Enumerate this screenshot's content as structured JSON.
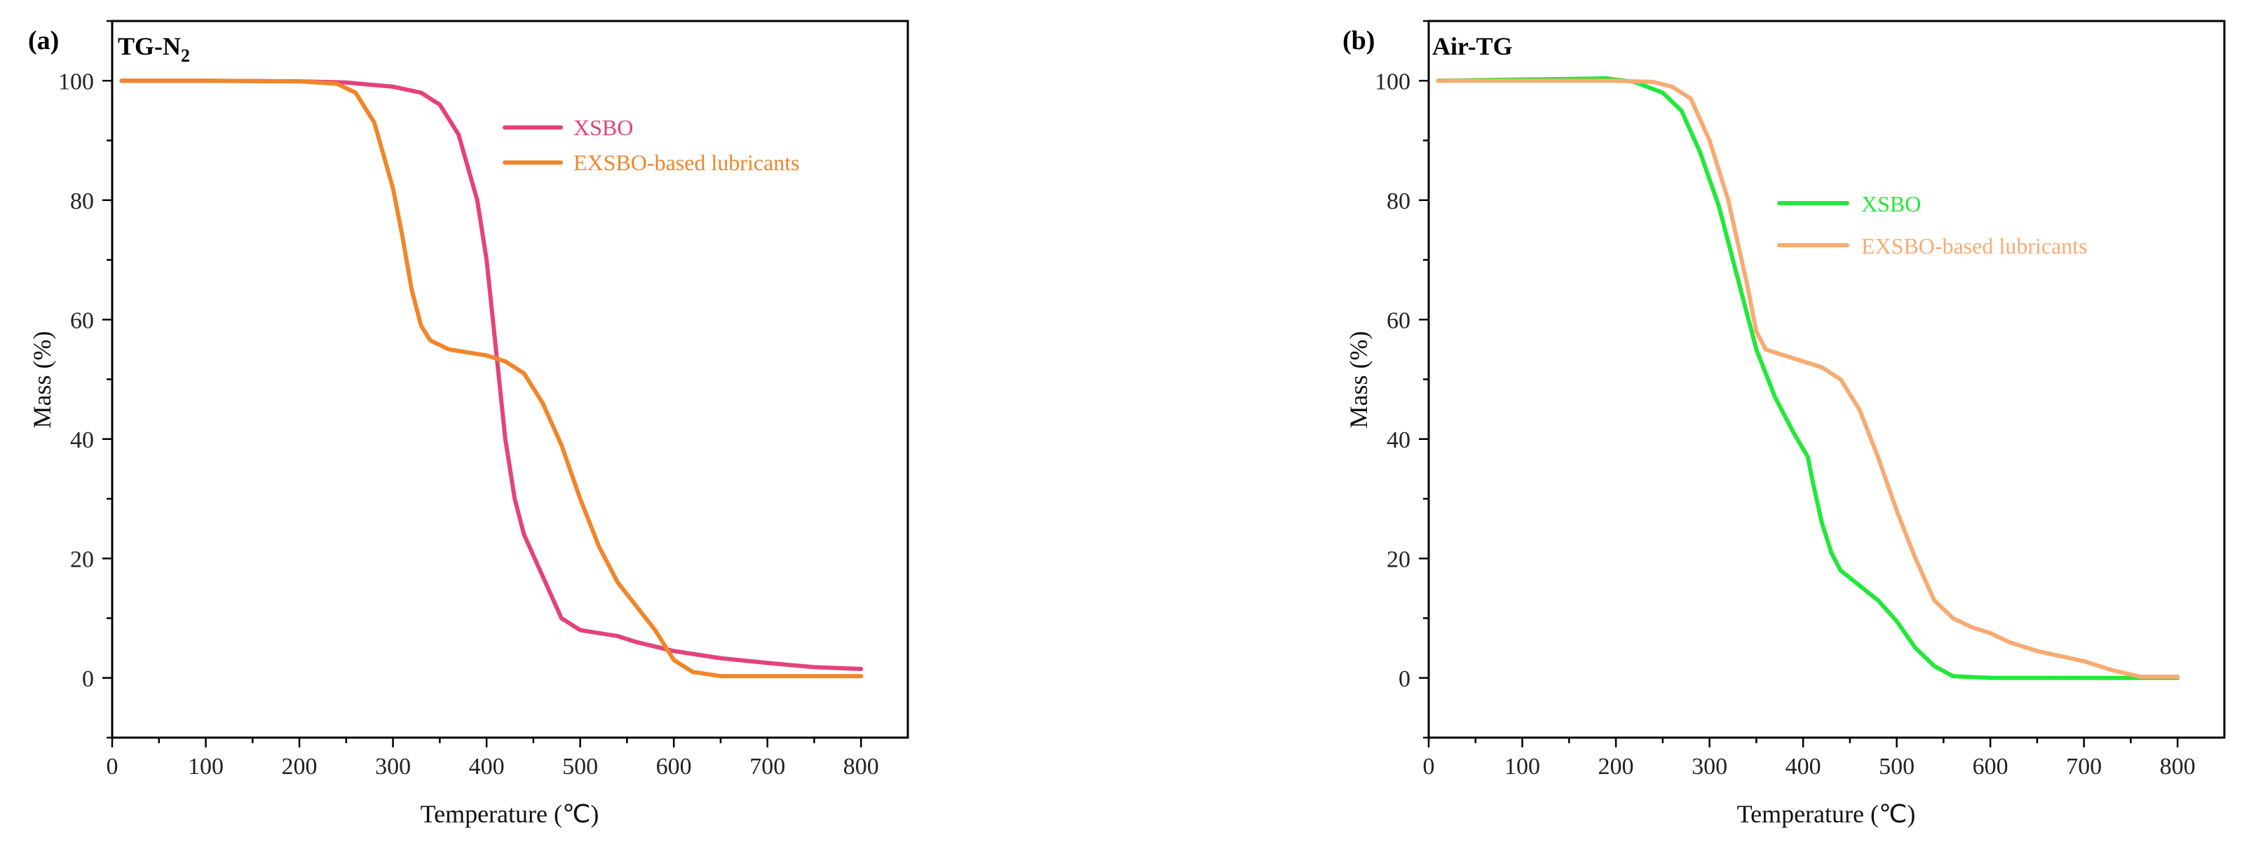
{
  "chart_data": [
    {
      "type": "line",
      "panel_label": "(a)",
      "title_main": "TG-N",
      "title_sub": "2",
      "xlabel": "Temperature (℃)",
      "ylabel": "Mass (%)",
      "xlim": [
        0,
        850
      ],
      "ylim": [
        -10,
        110
      ],
      "xticks": [
        0,
        100,
        200,
        300,
        400,
        500,
        600,
        700,
        800
      ],
      "yticks": [
        0,
        20,
        40,
        60,
        80,
        100
      ],
      "legend_position": "upper-center",
      "series": [
        {
          "name": "XSBO",
          "color": "#e5427b",
          "points": [
            [
              10,
              100
            ],
            [
              100,
              100
            ],
            [
              200,
              99.9
            ],
            [
              250,
              99.7
            ],
            [
              300,
              99
            ],
            [
              330,
              98
            ],
            [
              350,
              96
            ],
            [
              370,
              91
            ],
            [
              390,
              80
            ],
            [
              400,
              70
            ],
            [
              410,
              55
            ],
            [
              420,
              40
            ],
            [
              430,
              30
            ],
            [
              440,
              24
            ],
            [
              460,
              17
            ],
            [
              480,
              10
            ],
            [
              500,
              8
            ],
            [
              520,
              7.5
            ],
            [
              540,
              7
            ],
            [
              560,
              6
            ],
            [
              600,
              4.5
            ],
            [
              650,
              3.3
            ],
            [
              700,
              2.5
            ],
            [
              750,
              1.8
            ],
            [
              800,
              1.5
            ]
          ]
        },
        {
          "name": "EXSBO-based lubricants",
          "color": "#f0862a",
          "points": [
            [
              10,
              100
            ],
            [
              100,
              100
            ],
            [
              200,
              99.9
            ],
            [
              240,
              99.5
            ],
            [
              260,
              98
            ],
            [
              280,
              93
            ],
            [
              300,
              82
            ],
            [
              310,
              74
            ],
            [
              320,
              65
            ],
            [
              330,
              59
            ],
            [
              340,
              56.5
            ],
            [
              360,
              55
            ],
            [
              380,
              54.5
            ],
            [
              400,
              54
            ],
            [
              420,
              53
            ],
            [
              440,
              51
            ],
            [
              460,
              46
            ],
            [
              480,
              39
            ],
            [
              500,
              30
            ],
            [
              520,
              22
            ],
            [
              540,
              16
            ],
            [
              560,
              12
            ],
            [
              580,
              8
            ],
            [
              600,
              3
            ],
            [
              620,
              1
            ],
            [
              650,
              0.3
            ],
            [
              700,
              0.3
            ],
            [
              800,
              0.3
            ]
          ]
        }
      ]
    },
    {
      "type": "line",
      "panel_label": "(b)",
      "title_main": "Air-TG",
      "title_sub": "",
      "xlabel": "Temperature (℃)",
      "ylabel": "Mass (%)",
      "xlim": [
        0,
        850
      ],
      "ylim": [
        -10,
        110
      ],
      "xticks": [
        0,
        100,
        200,
        300,
        400,
        500,
        600,
        700,
        800
      ],
      "yticks": [
        0,
        20,
        40,
        60,
        80,
        100
      ],
      "legend_position": "center",
      "series": [
        {
          "name": "XSBO",
          "color": "#22e83a",
          "points": [
            [
              10,
              100
            ],
            [
              100,
              100.2
            ],
            [
              150,
              100.3
            ],
            [
              190,
              100.4
            ],
            [
              220,
              99.8
            ],
            [
              250,
              98
            ],
            [
              270,
              95
            ],
            [
              290,
              88
            ],
            [
              310,
              79
            ],
            [
              330,
              67
            ],
            [
              350,
              55
            ],
            [
              370,
              47
            ],
            [
              390,
              41
            ],
            [
              405,
              37
            ],
            [
              410,
              33
            ],
            [
              420,
              26
            ],
            [
              430,
              21
            ],
            [
              440,
              18
            ],
            [
              460,
              15.5
            ],
            [
              480,
              13
            ],
            [
              500,
              9.5
            ],
            [
              520,
              5
            ],
            [
              540,
              2
            ],
            [
              560,
              0.3
            ],
            [
              600,
              0
            ],
            [
              700,
              0
            ],
            [
              800,
              0
            ]
          ]
        },
        {
          "name": "EXSBO-based lubricants",
          "color": "#f7ab72",
          "points": [
            [
              10,
              100
            ],
            [
              100,
              100
            ],
            [
              200,
              100
            ],
            [
              240,
              99.8
            ],
            [
              260,
              99
            ],
            [
              280,
              97
            ],
            [
              300,
              90
            ],
            [
              320,
              80
            ],
            [
              340,
              66
            ],
            [
              350,
              58
            ],
            [
              360,
              55
            ],
            [
              380,
              54
            ],
            [
              400,
              53
            ],
            [
              420,
              52
            ],
            [
              440,
              50
            ],
            [
              460,
              45
            ],
            [
              480,
              37
            ],
            [
              500,
              28
            ],
            [
              520,
              20
            ],
            [
              540,
              13
            ],
            [
              560,
              10
            ],
            [
              580,
              8.5
            ],
            [
              600,
              7.5
            ],
            [
              620,
              6
            ],
            [
              650,
              4.5
            ],
            [
              700,
              2.8
            ],
            [
              730,
              1.3
            ],
            [
              760,
              0.2
            ],
            [
              800,
              0.2
            ]
          ]
        }
      ]
    }
  ]
}
